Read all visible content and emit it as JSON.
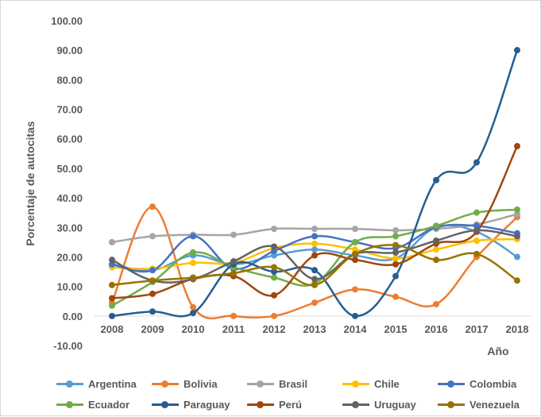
{
  "chart_data": {
    "type": "line",
    "xlabel": "Año",
    "ylabel": "Porcentaje de autocitas",
    "x": [
      "2008",
      "2009",
      "2010",
      "2011",
      "2012",
      "2013",
      "2014",
      "2015",
      "2016",
      "2017",
      "2018"
    ],
    "ylim": [
      -10,
      100
    ],
    "yticks": [
      "-10.00",
      "0.00",
      "10.00",
      "20.00",
      "30.00",
      "40.00",
      "50.00",
      "60.00",
      "70.00",
      "80.00",
      "90.00",
      "100.00"
    ],
    "grid": false,
    "legend_position": "bottom",
    "smooth": true,
    "series": [
      {
        "name": "Argentina",
        "color": "#5b9bd5",
        "values": [
          17.5,
          15.5,
          20.5,
          17.5,
          20.5,
          22.5,
          20.5,
          19.5,
          30.0,
          28.5,
          20.0
        ]
      },
      {
        "name": "Bolivia",
        "color": "#ed7d31",
        "values": [
          4.5,
          37.0,
          3.0,
          0.0,
          0.0,
          4.5,
          9.0,
          6.5,
          4.0,
          20.0,
          33.5
        ]
      },
      {
        "name": "Brasil",
        "color": "#a5a5a5",
        "values": [
          25.0,
          27.0,
          27.5,
          27.5,
          29.5,
          29.5,
          29.5,
          29.0,
          29.5,
          31.0,
          34.5
        ]
      },
      {
        "name": "Chile",
        "color": "#ffc000",
        "values": [
          16.5,
          16.0,
          18.0,
          18.0,
          23.0,
          24.5,
          22.5,
          19.5,
          22.5,
          25.5,
          26.0
        ]
      },
      {
        "name": "Colombia",
        "color": "#4472c4",
        "values": [
          17.5,
          15.5,
          27.0,
          16.0,
          22.0,
          27.0,
          25.0,
          23.0,
          30.0,
          30.5,
          28.0
        ]
      },
      {
        "name": "Ecuador",
        "color": "#70ad47",
        "values": [
          3.5,
          11.5,
          21.5,
          16.5,
          13.0,
          11.0,
          25.0,
          27.0,
          30.5,
          35.0,
          36.0
        ]
      },
      {
        "name": "Paraguay",
        "color": "#255e91",
        "values": [
          0.0,
          1.5,
          1.0,
          17.5,
          15.0,
          15.5,
          0.0,
          13.5,
          46.0,
          52.0,
          90.0
        ]
      },
      {
        "name": "Perú",
        "color": "#9e480e",
        "values": [
          6.0,
          7.5,
          12.5,
          13.5,
          7.0,
          20.5,
          19.0,
          17.5,
          24.5,
          28.5,
          57.5
        ]
      },
      {
        "name": "Uruguay",
        "color": "#636363",
        "values": [
          19.0,
          12.0,
          12.5,
          18.5,
          23.5,
          12.5,
          21.0,
          21.5,
          25.5,
          29.0,
          27.0
        ]
      },
      {
        "name": "Venezuela",
        "color": "#997300",
        "values": [
          10.5,
          12.0,
          13.0,
          14.5,
          16.5,
          10.5,
          21.0,
          24.0,
          19.0,
          21.0,
          12.0
        ]
      }
    ]
  }
}
